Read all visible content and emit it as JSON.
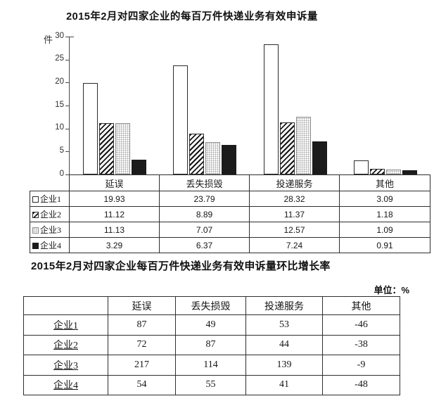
{
  "page": {
    "chart_title": "2015年2月对四家企业的每百万件快递业务有效申诉量",
    "y_axis_unit": "件",
    "growth_title": "2015年2月对四家企业每百万件快递业务有效申诉量环比增长率",
    "growth_unit_note": "单位：%"
  },
  "chart_data": {
    "type": "bar",
    "title": "2015年2月对四家企业的每百万件快递业务有效申诉量",
    "ylabel": "件",
    "xlabel": "",
    "categories": [
      "延误",
      "丢失损毁",
      "投递服务",
      "其他"
    ],
    "series": [
      {
        "name": "企业1",
        "pattern": "white",
        "values": [
          19.93,
          23.79,
          28.32,
          3.09
        ]
      },
      {
        "name": "企业2",
        "pattern": "diagonal-hatch",
        "values": [
          11.12,
          8.89,
          11.37,
          1.18
        ]
      },
      {
        "name": "企业3",
        "pattern": "dotted",
        "values": [
          11.13,
          7.07,
          12.57,
          1.09
        ]
      },
      {
        "name": "企业4",
        "pattern": "solid-black",
        "values": [
          3.29,
          6.37,
          7.24,
          0.91
        ]
      }
    ],
    "ylim": [
      0,
      30
    ],
    "yticks": [
      0,
      5,
      10,
      15,
      20,
      25,
      30
    ],
    "grid": false,
    "legend_position": "attached-data-table-left",
    "colors": {
      "bar_outline": "#2b2b2b",
      "solid_fill": "#1b1b1b",
      "background": "#ffffff"
    }
  },
  "growth_table": {
    "columns": [
      "",
      "延误",
      "丢失损毁",
      "投递服务",
      "其他"
    ],
    "rows": [
      {
        "label": "企业1",
        "values": [
          87,
          49,
          53,
          -46
        ]
      },
      {
        "label": "企业2",
        "values": [
          72,
          87,
          44,
          -38
        ]
      },
      {
        "label": "企业3",
        "values": [
          217,
          114,
          139,
          -9
        ]
      },
      {
        "label": "企业4",
        "values": [
          54,
          55,
          41,
          -48
        ]
      }
    ]
  }
}
